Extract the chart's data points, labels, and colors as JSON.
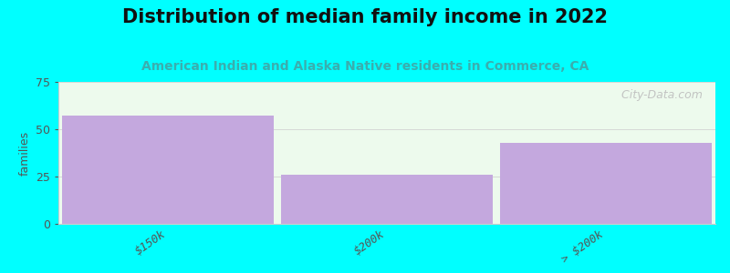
{
  "title": "Distribution of median family income in 2022",
  "subtitle": "American Indian and Alaska Native residents in Commerce, CA",
  "categories": [
    "$150k",
    "$200k",
    "> $200k"
  ],
  "values": [
    57,
    26,
    43
  ],
  "bar_color": "#c4a8de",
  "background_color": "#00ffff",
  "plot_bg_color": "#edfaed",
  "ylabel": "families",
  "ylim": [
    0,
    75
  ],
  "yticks": [
    0,
    25,
    50,
    75
  ],
  "title_fontsize": 15,
  "subtitle_fontsize": 10,
  "subtitle_color": "#3aaeae",
  "watermark": "  City-Data.com",
  "bar_edge_color": "none",
  "tick_color": "#555555"
}
